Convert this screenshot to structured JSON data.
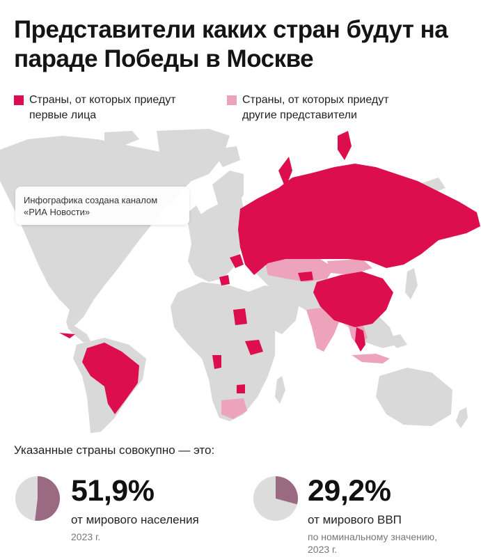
{
  "title": "Представители каких стран будут на параде Победы в Москве",
  "legend": {
    "first": {
      "label": "Страны, от которых приедут\nпервые лица",
      "color": "#dc0e4d"
    },
    "other": {
      "label": "Страны, от которых приедут\nдругие представители",
      "color": "#eda3bb"
    }
  },
  "note": "Инфографика создана каналом «РИА Новости»",
  "colors": {
    "land": "#d9d9d9",
    "first": "#dc0e4d",
    "first_light": "#f0457f",
    "other": "#eda3bb",
    "pie_base": "#dcdcdc",
    "pie_share": "#9a6a82"
  },
  "summary": "Указанные страны совокупно — это:",
  "stats": [
    {
      "value": "51,9%",
      "share": 0.519,
      "label": "от мирового населения",
      "note": "2023 г."
    },
    {
      "value": "29,2%",
      "share": 0.292,
      "label": "от мирового ВВП",
      "note": "по номинальному значению,\n2023 г."
    }
  ]
}
